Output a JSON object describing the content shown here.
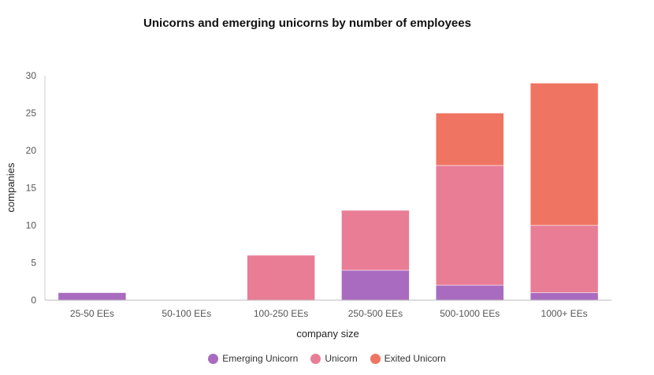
{
  "chart_data": {
    "type": "bar",
    "stacked": true,
    "title": "Unicorns and emerging unicorns by number of employees",
    "xlabel": "company size",
    "ylabel": "companies",
    "ylim": [
      0,
      30
    ],
    "yticks": [
      0,
      5,
      10,
      15,
      20,
      25,
      30
    ],
    "categories": [
      "25-50 EEs",
      "50-100 EEs",
      "100-250 EEs",
      "250-500 EEs",
      "500-1000 EEs",
      "1000+ EEs"
    ],
    "series": [
      {
        "name": "Emerging Unicorn",
        "color": "#a96bbf",
        "values": [
          1,
          0,
          0,
          4,
          2,
          1
        ]
      },
      {
        "name": "Unicorn",
        "color": "#e97d96",
        "values": [
          0,
          0,
          6,
          8,
          16,
          9
        ]
      },
      {
        "name": "Exited Unicorn",
        "color": "#ef7562",
        "values": [
          0,
          0,
          0,
          0,
          7,
          19
        ]
      }
    ],
    "legend_position": "bottom",
    "grid": false
  }
}
